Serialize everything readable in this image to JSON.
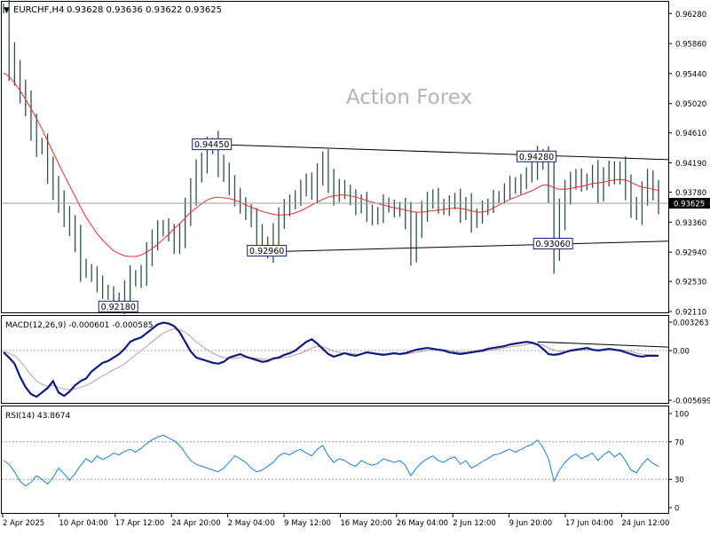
{
  "header": {
    "arrow": "▼",
    "symbol": "EURCHF,H4",
    "ohlc": "0.93628 0.93636 0.93622 0.93625"
  },
  "watermark": "Action Forex",
  "colors": {
    "price": "#2f4f4f",
    "ma": "#e8302a",
    "macd": "#0d1a80",
    "signal": "#c39a9a",
    "rsi": "#1e7fd8",
    "price_badge_bg": "#000000",
    "price_badge_fg": "#ffffff",
    "label_border": "#1a237e"
  },
  "chart_data": [
    {
      "type": "line",
      "panel": "price",
      "ylim": [
        0.9211,
        0.9642
      ],
      "y_ticks": [
        "0.96280",
        "0.95860",
        "0.95440",
        "0.95020",
        "0.94610",
        "0.94190",
        "0.93780",
        "0.93360",
        "0.92940",
        "0.92530",
        "0.92110"
      ],
      "current_price": "0.93625",
      "series": [
        {
          "values": [
            0.9635,
            0.957,
            0.9545,
            0.952,
            0.95,
            0.947,
            0.9445,
            0.944,
            0.941,
            0.9385,
            0.9365,
            0.9345,
            0.933,
            0.931,
            0.9275,
            0.9268,
            0.9262,
            0.925,
            0.924,
            0.9236,
            0.9228,
            0.9222,
            0.924,
            0.926,
            0.9255,
            0.9265,
            0.929,
            0.931,
            0.9325,
            0.933,
            0.932,
            0.9305,
            0.932,
            0.935,
            0.9378,
            0.9405,
            0.942,
            0.944,
            0.9445,
            0.9418,
            0.9405,
            0.9388,
            0.9372,
            0.936,
            0.935,
            0.934,
            0.932,
            0.9305,
            0.9296,
            0.9318,
            0.934,
            0.9355,
            0.9364,
            0.9371,
            0.9383,
            0.9393,
            0.938,
            0.9402,
            0.942,
            0.9395,
            0.9375,
            0.9385,
            0.9378,
            0.937,
            0.9358,
            0.9365,
            0.935,
            0.9342,
            0.9348,
            0.9362,
            0.9358,
            0.9352,
            0.9356,
            0.934,
            0.93,
            0.933,
            0.935,
            0.9365,
            0.9372,
            0.936,
            0.9355,
            0.9363,
            0.9368,
            0.935,
            0.936,
            0.9338,
            0.9345,
            0.9355,
            0.936,
            0.937,
            0.9372,
            0.938,
            0.939,
            0.9385,
            0.9393,
            0.9402,
            0.941,
            0.9428,
            0.942,
            0.9385,
            0.9306,
            0.9345,
            0.9375,
            0.9392,
            0.94,
            0.939,
            0.9395,
            0.9405,
            0.938,
            0.9398,
            0.941,
            0.94,
            0.941,
            0.9385,
            0.936,
            0.935,
            0.9375,
            0.9395,
            0.938,
            0.9362
          ],
          "ma": [
            0.9545,
            0.954,
            0.9531,
            0.952,
            0.9508,
            0.9495,
            0.9481,
            0.9466,
            0.945,
            0.9434,
            0.9418,
            0.9402,
            0.9387,
            0.9372,
            0.9357,
            0.9343,
            0.9331,
            0.932,
            0.9311,
            0.9303,
            0.9296,
            0.9292,
            0.9289,
            0.9288,
            0.9288,
            0.929,
            0.9294,
            0.9299,
            0.9305,
            0.9312,
            0.9319,
            0.9327,
            0.9334,
            0.9342,
            0.935,
            0.9356,
            0.9362,
            0.9367,
            0.937,
            0.9371,
            0.937,
            0.9369,
            0.9367,
            0.9364,
            0.936,
            0.9357,
            0.9354,
            0.9351,
            0.9349,
            0.9347,
            0.9346,
            0.9346,
            0.9347,
            0.9349,
            0.9352,
            0.9356,
            0.936,
            0.9364,
            0.9368,
            0.9371,
            0.9373,
            0.9374,
            0.9374,
            0.9373,
            0.9371,
            0.9369,
            0.9366,
            0.9364,
            0.9362,
            0.936,
            0.9358,
            0.9356,
            0.9355,
            0.9353,
            0.9351,
            0.935,
            0.935,
            0.9351,
            0.9352,
            0.9353,
            0.9354,
            0.9355,
            0.9356,
            0.9355,
            0.9354,
            0.9352,
            0.935,
            0.935,
            0.9352,
            0.9356,
            0.936,
            0.9364,
            0.9368,
            0.9371,
            0.9374,
            0.9377,
            0.938,
            0.9384,
            0.9388,
            0.9388,
            0.9384,
            0.9382,
            0.9382,
            0.9383,
            0.9385,
            0.9386,
            0.9388,
            0.939,
            0.9391,
            0.9392,
            0.9394,
            0.9395,
            0.9396,
            0.9395,
            0.9392,
            0.9388,
            0.9385,
            0.9384,
            0.9382,
            0.938
          ]
        }
      ],
      "trendlines": [
        {
          "from": [
            38,
            0.9445
          ],
          "to": [
            119,
            0.94235
          ]
        },
        {
          "from": [
            48,
            0.92945
          ],
          "to": [
            119,
            0.93095
          ]
        }
      ],
      "annotations": [
        {
          "text": "0.94450",
          "x": 38,
          "y": 0.9445
        },
        {
          "text": "0.92960",
          "x": 48,
          "y": 0.9296
        },
        {
          "text": "0.92180",
          "x": 21,
          "y": 0.9218
        },
        {
          "text": "0.94280",
          "x": 97,
          "y": 0.9428
        },
        {
          "text": "0.93060",
          "x": 100,
          "y": 0.9306
        }
      ]
    },
    {
      "type": "line",
      "panel": "macd",
      "title": "MACD(12,26,9) -0.000601 -0.000585",
      "ylim": [
        -0.005699,
        0.003263
      ],
      "y_ticks": [
        "0.003263",
        "0.00",
        "-0.005699"
      ],
      "series": [
        {
          "values": [
            -0.0002,
            -0.0008,
            -0.0015,
            -0.003,
            -0.0042,
            -0.005,
            -0.0053,
            -0.0048,
            -0.0043,
            -0.0035,
            -0.0048,
            -0.0052,
            -0.0047,
            -0.004,
            -0.0035,
            -0.0032,
            -0.0024,
            -0.0019,
            -0.0014,
            -0.0012,
            -0.0008,
            -0.0004,
            0.0002,
            0.001,
            0.0013,
            0.0015,
            0.002,
            0.0025,
            0.003,
            0.0032,
            0.0031,
            0.0028,
            0.0021,
            0.001,
            -0.0001,
            -0.0008,
            -0.001,
            -0.0012,
            -0.0014,
            -0.0015,
            -0.0013,
            -0.0008,
            -0.0006,
            -0.0004,
            -0.0007,
            -0.0009,
            -0.0011,
            -0.0013,
            -0.0012,
            -0.0009,
            -0.0008,
            -0.0005,
            -0.0003,
            0.0,
            0.0005,
            0.001,
            0.0013,
            0.0008,
            0.0002,
            -0.0004,
            -0.0007,
            -0.0005,
            -0.0003,
            -0.0005,
            -0.0006,
            -0.0004,
            -0.0002,
            -0.0003,
            -0.0004,
            -0.0005,
            -0.0004,
            -0.0003,
            -0.0004,
            -0.0003,
            -0.0001,
            0.0001,
            0.0002,
            0.0003,
            0.0002,
            0.0001,
            0.0,
            -0.0002,
            -0.0003,
            -0.0004,
            -0.0003,
            -0.0002,
            -0.0001,
            0.0,
            0.0002,
            0.0003,
            0.0004,
            0.0005,
            0.0007,
            0.0008,
            0.0009,
            0.001,
            0.0009,
            0.0007,
            0.0002,
            -0.0004,
            -0.0005,
            -0.0004,
            -0.0002,
            0.0,
            0.0001,
            0.0002,
            0.0003,
            0.0001,
            0.0,
            0.0001,
            0.0002,
            0.0001,
            0.0,
            -0.0002,
            -0.0004,
            -0.0006,
            -0.0007,
            -0.0006,
            -0.0006,
            -0.0006
          ]
        },
        {
          "values": [
            -0.0001,
            -0.0003,
            -0.0006,
            -0.0012,
            -0.002,
            -0.0028,
            -0.0035,
            -0.0039,
            -0.0041,
            -0.004,
            -0.0042,
            -0.0044,
            -0.0045,
            -0.0044,
            -0.0042,
            -0.004,
            -0.0037,
            -0.0033,
            -0.0029,
            -0.0026,
            -0.0022,
            -0.0019,
            -0.0015,
            -0.001,
            -0.0005,
            0.0,
            0.0005,
            0.001,
            0.0015,
            0.002,
            0.0023,
            0.0025,
            0.0024,
            0.0021,
            0.0016,
            0.001,
            0.0005,
            0.0001,
            -0.0003,
            -0.0006,
            -0.0008,
            -0.0009,
            -0.0009,
            -0.0008,
            -0.0008,
            -0.0008,
            -0.0009,
            -0.001,
            -0.001,
            -0.001,
            -0.0009,
            -0.0008,
            -0.0007,
            -0.0005,
            -0.0003,
            0.0,
            0.0003,
            0.0005,
            0.0004,
            0.0002,
            -0.0001,
            -0.0002,
            -0.0003,
            -0.0003,
            -0.0004,
            -0.0004,
            -0.0003,
            -0.0003,
            -0.0003,
            -0.0004,
            -0.0004,
            -0.0004,
            -0.0004,
            -0.0004,
            -0.0003,
            -0.0002,
            -0.0001,
            0.0,
            0.0001,
            0.0001,
            0.0001,
            0.0,
            -0.0001,
            -0.0002,
            -0.0002,
            -0.0002,
            -0.0002,
            -0.0001,
            0.0,
            0.0001,
            0.0002,
            0.0003,
            0.0004,
            0.0005,
            0.0006,
            0.0007,
            0.0008,
            0.0008,
            0.0006,
            0.0003,
            0.0001,
            -0.0001,
            -0.0001,
            -0.0001,
            0.0,
            0.0001,
            0.0001,
            0.0001,
            0.0001,
            0.0001,
            0.0001,
            0.0001,
            0.0001,
            0.0,
            -0.0001,
            -0.0003,
            -0.0004,
            -0.0005,
            -0.0005,
            -0.0006
          ]
        }
      ],
      "trendlines": [
        {
          "from": [
            97,
            0.001
          ],
          "to": [
            119,
            0.0004
          ]
        }
      ]
    },
    {
      "type": "line",
      "panel": "rsi",
      "title": "RSI(14) 43.8674",
      "ylim": [
        0,
        100
      ],
      "y_ticks": [
        "100",
        "70",
        "30",
        "0"
      ],
      "levels": [
        70,
        30
      ],
      "series": [
        {
          "values": [
            50,
            46,
            38,
            28,
            23,
            27,
            34,
            30,
            25,
            32,
            42,
            36,
            29,
            36,
            45,
            52,
            48,
            55,
            51,
            54,
            58,
            56,
            60,
            62,
            59,
            63,
            68,
            72,
            75,
            77,
            74,
            71,
            66,
            58,
            50,
            46,
            44,
            42,
            40,
            38,
            42,
            48,
            55,
            52,
            48,
            42,
            38,
            40,
            44,
            48,
            55,
            58,
            56,
            60,
            62,
            58,
            55,
            62,
            66,
            55,
            48,
            52,
            50,
            46,
            44,
            50,
            47,
            45,
            47,
            52,
            50,
            48,
            50,
            45,
            34,
            42,
            48,
            52,
            55,
            50,
            48,
            52,
            54,
            46,
            50,
            42,
            45,
            49,
            52,
            56,
            57,
            60,
            62,
            59,
            62,
            65,
            67,
            72,
            64,
            52,
            28,
            40,
            48,
            54,
            57,
            52,
            55,
            58,
            50,
            56,
            60,
            54,
            58,
            50,
            40,
            37,
            46,
            52,
            47,
            44
          ]
        }
      ]
    }
  ],
  "x_axis": {
    "labels": [
      "2 Apr 2025",
      "10 Apr 04:00",
      "17 Apr 12:00",
      "24 Apr 20:00",
      "2 May 04:00",
      "9 May 12:00",
      "16 May 20:00",
      "26 May 04:00",
      "2 Jun 12:00",
      "9 Jun 20:00",
      "17 Jun 04:00",
      "24 Jun 12:00"
    ]
  }
}
